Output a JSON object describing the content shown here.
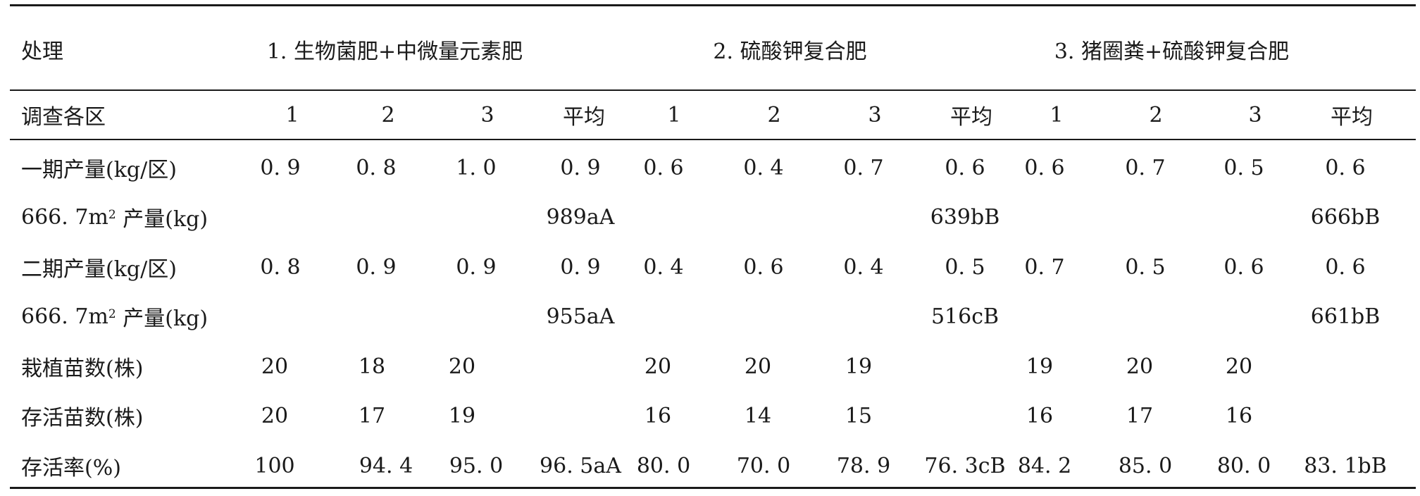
{
  "table": {
    "header_label": "处理",
    "treatments": [
      "1. 生物菌肥+中微量元素肥",
      "2. 硫酸钾复合肥",
      "3. 猪圈粪+硫酸钾复合肥"
    ],
    "sub_header": {
      "label": "调查各区",
      "cols": [
        "1",
        "2",
        "3",
        "平均",
        "1",
        "2",
        "3",
        "平均",
        "1",
        "2",
        "3",
        "平均"
      ]
    },
    "rows": [
      {
        "label": "一期产量(kg/区)",
        "values": [
          "0. 9",
          "0. 8",
          "1. 0",
          "0. 9",
          "0. 6",
          "0. 4",
          "0. 7",
          "0. 6",
          "0. 6",
          "0. 7",
          "0. 5",
          "0. 6"
        ]
      },
      {
        "label_prefix": "666. 7m",
        "label_sup": "2",
        "label_suffix": " 产量(kg)",
        "values": [
          "",
          "",
          "",
          "989aA",
          "",
          "",
          "",
          "639bB",
          "",
          "",
          "",
          "666bB"
        ]
      },
      {
        "label": "二期产量(kg/区)",
        "values": [
          "0. 8",
          "0. 9",
          "0. 9",
          "0. 9",
          "0. 4",
          "0. 6",
          "0. 4",
          "0. 5",
          "0. 7",
          "0. 5",
          "0. 6",
          "0. 6"
        ]
      },
      {
        "label_prefix": "666. 7m",
        "label_sup": "2",
        "label_suffix": " 产量(kg)",
        "values": [
          "",
          "",
          "",
          "955aA",
          "",
          "",
          "",
          "516cB",
          "",
          "",
          "",
          "661bB"
        ]
      },
      {
        "label": "栽植苗数(株)",
        "values": [
          "20",
          "18",
          "20",
          "",
          "20",
          "20",
          "19",
          "",
          "19",
          "20",
          "20",
          ""
        ]
      },
      {
        "label": "存活苗数(株)",
        "values": [
          "20",
          "17",
          "19",
          "",
          "16",
          "14",
          "15",
          "",
          "16",
          "17",
          "16",
          ""
        ]
      },
      {
        "label": "存活率(%)",
        "values": [
          "100",
          "94. 4",
          "95. 0",
          "96. 5aA",
          "80. 0",
          "70. 0",
          "78. 9",
          "76. 3cB",
          "84. 2",
          "85. 0",
          "80. 0",
          "83. 1bB"
        ]
      }
    ]
  }
}
